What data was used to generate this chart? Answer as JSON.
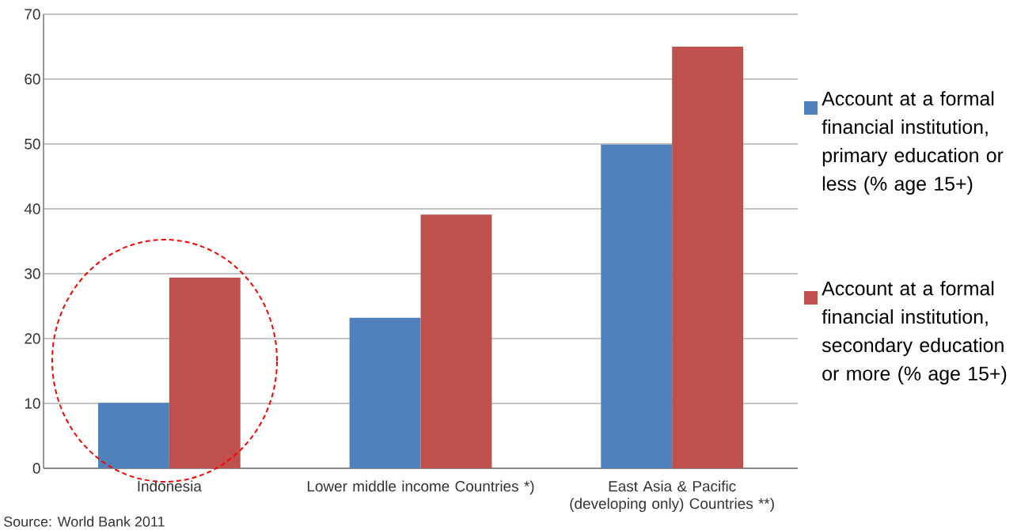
{
  "chart_data": {
    "type": "bar",
    "categories": [
      "Indonesia",
      "Lower middle income Countries *)",
      "East Asia & Pacific (developing only) Countries **)"
    ],
    "series": [
      {
        "name": "Account at a formal financial institution, primary education or less (% age 15+)",
        "color": "#4f81bd",
        "values": [
          10.1,
          23.2,
          49.9
        ]
      },
      {
        "name": "Account at a formal financial institution, secondary education or more (% age 15+)",
        "color": "#c0504d",
        "values": [
          29.4,
          39.1,
          65.0
        ]
      }
    ],
    "ylim": [
      0,
      70
    ],
    "yticks": [
      0,
      10,
      20,
      30,
      40,
      50,
      60,
      70
    ],
    "grid": "y",
    "legend": "right",
    "annotations": [
      "Source: World Bank 2011"
    ]
  }
}
